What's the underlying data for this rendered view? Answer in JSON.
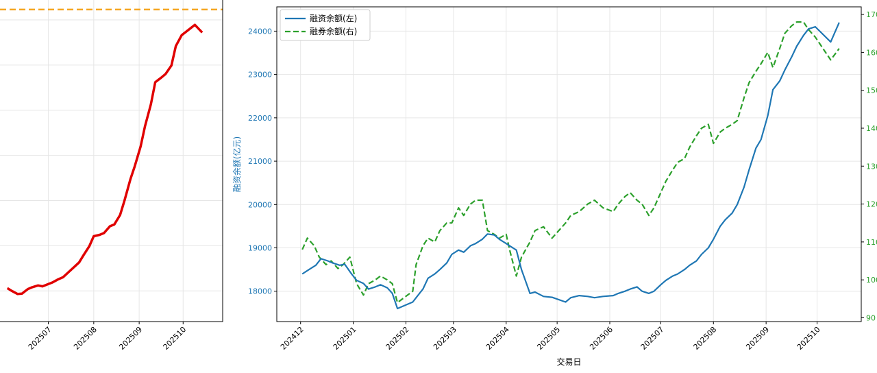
{
  "chart_data": [
    {
      "type": "line",
      "title": "",
      "xlabel": "",
      "ylabel": "",
      "x_tick_labels": [
        "202507",
        "202508",
        "202509",
        "202510"
      ],
      "grid": true,
      "reference_line": {
        "style": "dashed",
        "color": "#f5a623",
        "value": 24230
      },
      "series": [
        {
          "color": "#e00000",
          "x": [
            "2025-06-03",
            "2025-06-06",
            "2025-06-10",
            "2025-06-13",
            "2025-06-17",
            "2025-06-20",
            "2025-06-24",
            "2025-06-27",
            "2025-07-01",
            "2025-07-04",
            "2025-07-08",
            "2025-07-11",
            "2025-07-15",
            "2025-07-18",
            "2025-07-22",
            "2025-07-25",
            "2025-07-29",
            "2025-08-01",
            "2025-08-05",
            "2025-08-08",
            "2025-08-12",
            "2025-08-15",
            "2025-08-19",
            "2025-08-22",
            "2025-08-26",
            "2025-08-29",
            "2025-09-02",
            "2025-09-05",
            "2025-09-09",
            "2025-09-12",
            "2025-09-16",
            "2025-09-19",
            "2025-09-23",
            "2025-09-26",
            "2025-09-30",
            "2025-10-09",
            "2025-10-14"
          ],
          "values": [
            18060,
            18000,
            17930,
            17940,
            18040,
            18080,
            18120,
            18100,
            18150,
            18190,
            18260,
            18300,
            18420,
            18510,
            18630,
            18790,
            18990,
            19210,
            19240,
            19280,
            19430,
            19470,
            19680,
            20000,
            20470,
            20760,
            21200,
            21650,
            22130,
            22620,
            22720,
            22800,
            22990,
            23420,
            23660,
            23890,
            23720
          ]
        }
      ]
    },
    {
      "type": "line",
      "xlabel": "交易日",
      "ylabel": "融资余额(亿元)",
      "x_tick_labels": [
        "202412",
        "202501",
        "202502",
        "202503",
        "202504",
        "202505",
        "202506",
        "202507",
        "202508",
        "202509",
        "202510"
      ],
      "y_left_ticks": [
        "18000",
        "19000",
        "20000",
        "21000",
        "22000",
        "23000",
        "24000"
      ],
      "y_right_ticks": [
        "90",
        "100",
        "110",
        "120",
        "130",
        "140",
        "150",
        "160",
        "170"
      ],
      "ylim_left": [
        17300,
        24560
      ],
      "ylim_right": [
        89,
        172
      ],
      "grid": true,
      "legend": {
        "position": "top-left",
        "entries": [
          "融资余额(左)",
          "融券余额(右)"
        ]
      },
      "axis_colors": {
        "left": "#1f77b4",
        "right": "#2ca02c"
      },
      "series": [
        {
          "name": "融资余额(左)",
          "axis": "left",
          "color": "#1f77b4",
          "style": "solid",
          "x": [
            "2024-12-02",
            "2024-12-06",
            "2024-12-10",
            "2024-12-13",
            "2024-12-17",
            "2024-12-20",
            "2024-12-24",
            "2024-12-27",
            "2024-12-31",
            "2025-01-03",
            "2025-01-07",
            "2025-01-10",
            "2025-01-14",
            "2025-01-17",
            "2025-01-21",
            "2025-01-24",
            "2025-01-27",
            "2025-02-05",
            "2025-02-07",
            "2025-02-11",
            "2025-02-14",
            "2025-02-18",
            "2025-02-21",
            "2025-02-25",
            "2025-02-28",
            "2025-03-04",
            "2025-03-07",
            "2025-03-11",
            "2025-03-14",
            "2025-03-18",
            "2025-03-21",
            "2025-03-25",
            "2025-03-28",
            "2025-04-01",
            "2025-04-03",
            "2025-04-07",
            "2025-04-10",
            "2025-04-15",
            "2025-04-18",
            "2025-04-23",
            "2025-04-28",
            "2025-05-06",
            "2025-05-09",
            "2025-05-14",
            "2025-05-19",
            "2025-05-23",
            "2025-05-28",
            "2025-06-03",
            "2025-06-06",
            "2025-06-10",
            "2025-06-13",
            "2025-06-17",
            "2025-06-20",
            "2025-06-24",
            "2025-06-27",
            "2025-07-01",
            "2025-07-04",
            "2025-07-08",
            "2025-07-11",
            "2025-07-15",
            "2025-07-18",
            "2025-07-22",
            "2025-07-25",
            "2025-07-29",
            "2025-08-01",
            "2025-08-05",
            "2025-08-08",
            "2025-08-12",
            "2025-08-15",
            "2025-08-19",
            "2025-08-22",
            "2025-08-26",
            "2025-08-29",
            "2025-09-02",
            "2025-09-05",
            "2025-09-09",
            "2025-09-12",
            "2025-09-16",
            "2025-09-19",
            "2025-09-23",
            "2025-09-26",
            "2025-09-30",
            "2025-10-09",
            "2025-10-14"
          ],
          "values": [
            18400,
            18500,
            18600,
            18750,
            18700,
            18650,
            18600,
            18620,
            18400,
            18250,
            18180,
            18050,
            18100,
            18150,
            18080,
            17950,
            17600,
            17750,
            17850,
            18050,
            18300,
            18400,
            18500,
            18650,
            18850,
            18950,
            18900,
            19050,
            19100,
            19200,
            19320,
            19300,
            19200,
            19100,
            19050,
            18950,
            18500,
            17950,
            17980,
            17880,
            17860,
            17750,
            17850,
            17900,
            17880,
            17850,
            17880,
            17900,
            17950,
            18000,
            18050,
            18100,
            18000,
            17950,
            18000,
            18150,
            18250,
            18350,
            18400,
            18500,
            18600,
            18700,
            18850,
            19000,
            19200,
            19500,
            19650,
            19800,
            20000,
            20400,
            20800,
            21300,
            21500,
            22050,
            22650,
            22850,
            23100,
            23400,
            23650,
            23900,
            24050,
            24100,
            23750,
            24200
          ]
        },
        {
          "name": "融券余额(右)",
          "axis": "right",
          "color": "#2ca02c",
          "style": "dashed",
          "x": [
            "2024-12-02",
            "2024-12-05",
            "2024-12-09",
            "2024-12-12",
            "2024-12-16",
            "2024-12-19",
            "2024-12-23",
            "2024-12-26",
            "2024-12-30",
            "2025-01-03",
            "2025-01-07",
            "2025-01-10",
            "2025-01-14",
            "2025-01-17",
            "2025-01-21",
            "2025-01-24",
            "2025-01-27",
            "2025-02-05",
            "2025-02-07",
            "2025-02-11",
            "2025-02-14",
            "2025-02-18",
            "2025-02-21",
            "2025-02-25",
            "2025-02-28",
            "2025-03-04",
            "2025-03-07",
            "2025-03-11",
            "2025-03-14",
            "2025-03-18",
            "2025-03-21",
            "2025-03-25",
            "2025-03-28",
            "2025-04-01",
            "2025-04-03",
            "2025-04-07",
            "2025-04-10",
            "2025-04-15",
            "2025-04-18",
            "2025-04-23",
            "2025-04-28",
            "2025-05-06",
            "2025-05-09",
            "2025-05-14",
            "2025-05-19",
            "2025-05-23",
            "2025-05-28",
            "2025-06-03",
            "2025-06-06",
            "2025-06-10",
            "2025-06-13",
            "2025-06-17",
            "2025-06-20",
            "2025-06-24",
            "2025-06-27",
            "2025-07-01",
            "2025-07-04",
            "2025-07-08",
            "2025-07-11",
            "2025-07-15",
            "2025-07-18",
            "2025-07-22",
            "2025-07-25",
            "2025-07-29",
            "2025-08-01",
            "2025-08-05",
            "2025-08-08",
            "2025-08-12",
            "2025-08-15",
            "2025-08-19",
            "2025-08-22",
            "2025-08-26",
            "2025-08-29",
            "2025-09-02",
            "2025-09-05",
            "2025-09-09",
            "2025-09-12",
            "2025-09-16",
            "2025-09-19",
            "2025-09-23",
            "2025-09-26",
            "2025-09-30",
            "2025-10-09",
            "2025-10-14"
          ],
          "values": [
            108,
            111,
            109,
            106,
            104,
            105,
            103,
            104,
            106,
            99,
            96,
            99,
            100,
            101,
            100,
            99,
            94,
            97,
            104,
            109,
            111,
            110,
            113,
            115,
            115,
            119,
            117,
            120,
            121,
            121,
            113,
            112,
            111,
            112,
            108,
            101,
            106,
            110,
            113,
            114,
            111,
            115,
            117,
            118,
            120,
            121,
            119,
            118,
            120,
            122,
            123,
            121,
            120,
            117,
            119,
            123,
            126,
            129,
            131,
            132,
            135,
            138,
            140,
            141,
            136,
            139,
            140,
            141,
            142,
            148,
            152,
            155,
            157,
            160,
            156,
            161,
            165,
            167,
            168,
            168,
            166,
            164,
            158,
            161
          ]
        }
      ]
    }
  ]
}
